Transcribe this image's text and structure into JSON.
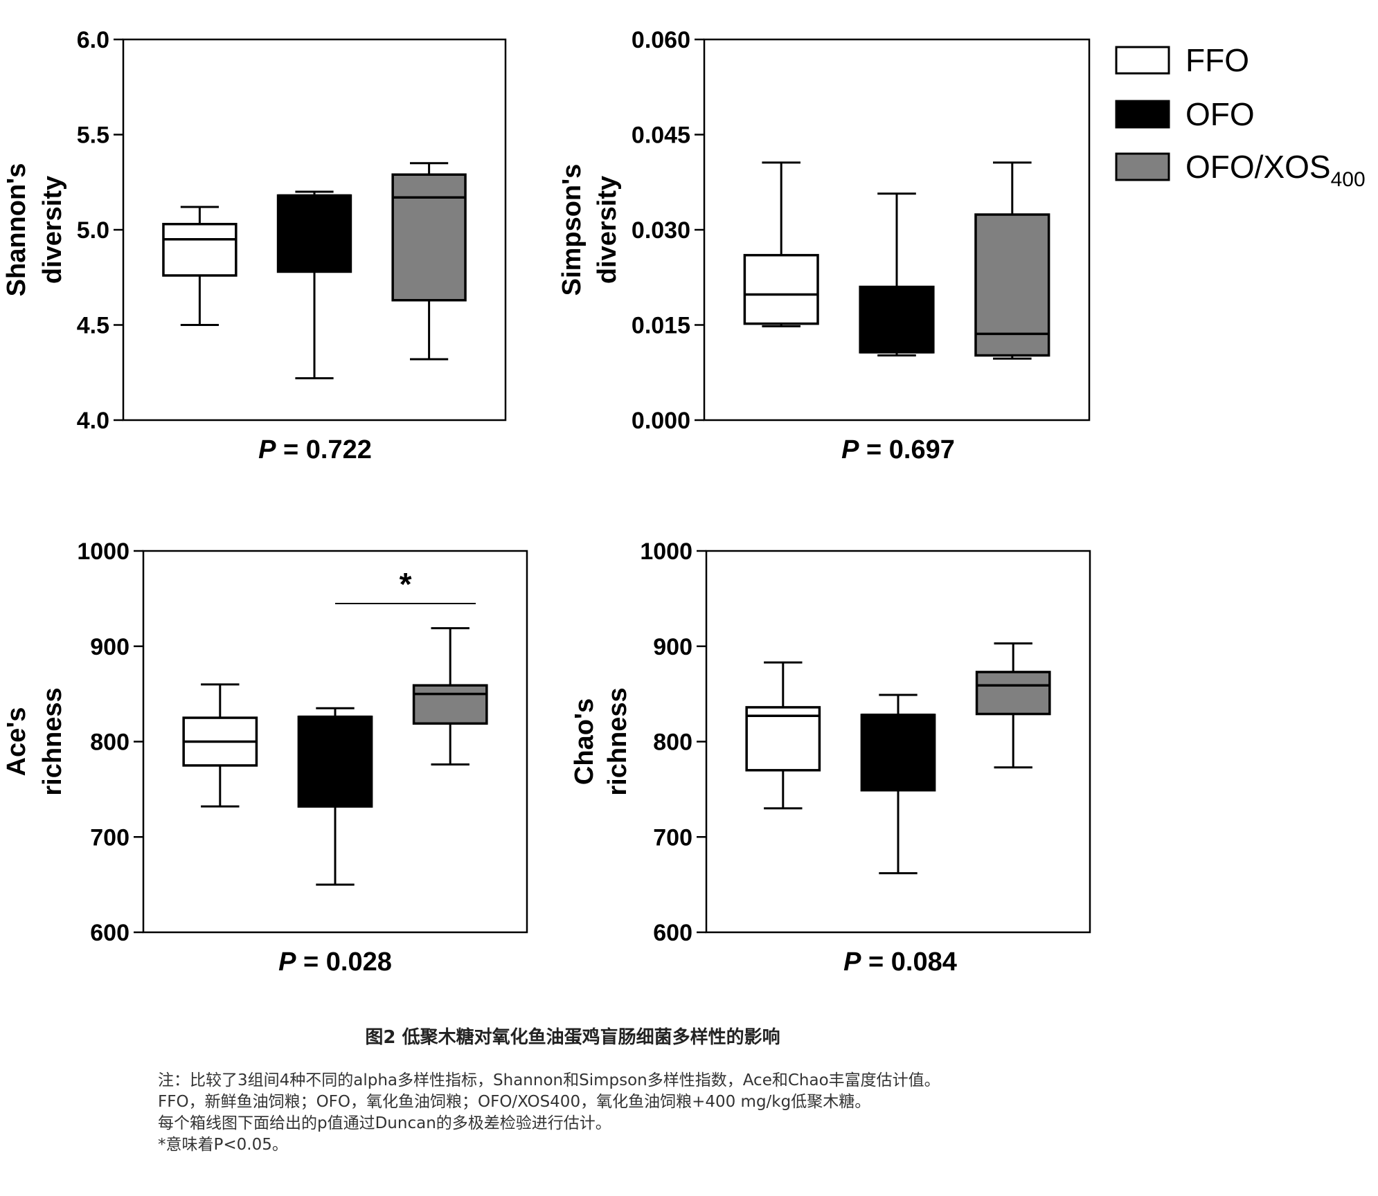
{
  "legend": [
    {
      "label": "FFO",
      "sub": "",
      "color": "#ffffff"
    },
    {
      "label": "OFO",
      "sub": "",
      "color": "#000000"
    },
    {
      "label": "OFO/XOS",
      "sub": "400",
      "color": "#808080"
    }
  ],
  "chart_data": [
    {
      "type": "box",
      "ylabel": [
        "Shannon's",
        "diversity"
      ],
      "ylim": [
        4.0,
        6.0
      ],
      "yticks": [
        "4.0",
        "4.5",
        "5.0",
        "5.5",
        "6.0"
      ],
      "p_value": "0.722",
      "boxes": [
        {
          "group": "FFO",
          "min": 4.5,
          "q1": 4.76,
          "median": 4.95,
          "q3": 5.03,
          "max": 5.12
        },
        {
          "group": "OFO",
          "min": 4.22,
          "q1": 4.78,
          "median": 5.18,
          "q3": 5.18,
          "max": 5.2
        },
        {
          "group": "OFO/XOS400",
          "min": 4.32,
          "q1": 4.63,
          "median": 5.17,
          "q3": 5.29,
          "max": 5.35
        }
      ]
    },
    {
      "type": "box",
      "ylabel": [
        "Simpson's",
        "diversity"
      ],
      "ylim": [
        0.0,
        0.06
      ],
      "yticks": [
        "0.000",
        "0.015",
        "0.030",
        "0.045",
        "0.060"
      ],
      "p_value": "0.697",
      "boxes": [
        {
          "group": "FFO",
          "min": 0.0148,
          "q1": 0.0152,
          "median": 0.0198,
          "q3": 0.026,
          "max": 0.0406
        },
        {
          "group": "OFO",
          "min": 0.0102,
          "q1": 0.0107,
          "median": 0.0107,
          "q3": 0.021,
          "max": 0.0357
        },
        {
          "group": "OFO/XOS400",
          "min": 0.0097,
          "q1": 0.0102,
          "median": 0.0136,
          "q3": 0.0324,
          "max": 0.0406
        }
      ]
    },
    {
      "type": "box",
      "ylabel": [
        "Ace's",
        "richness"
      ],
      "ylim": [
        600,
        1000
      ],
      "yticks": [
        "600",
        "700",
        "800",
        "900",
        "1000"
      ],
      "p_value": "0.028",
      "significance": {
        "from": "OFO",
        "to": "OFO/XOS400",
        "label": "*"
      },
      "boxes": [
        {
          "group": "FFO",
          "min": 732,
          "q1": 775,
          "median": 800,
          "q3": 825,
          "max": 860
        },
        {
          "group": "OFO",
          "min": 650,
          "q1": 732,
          "median": 826,
          "q3": 826,
          "max": 835
        },
        {
          "group": "OFO/XOS400",
          "min": 776,
          "q1": 819,
          "median": 850,
          "q3": 859,
          "max": 919
        }
      ]
    },
    {
      "type": "box",
      "ylabel": [
        "Chao's",
        "richness"
      ],
      "ylim": [
        600,
        1000
      ],
      "yticks": [
        "600",
        "700",
        "800",
        "900",
        "1000"
      ],
      "p_value": "0.084",
      "boxes": [
        {
          "group": "FFO",
          "min": 730,
          "q1": 770,
          "median": 827,
          "q3": 836,
          "max": 883
        },
        {
          "group": "OFO",
          "min": 662,
          "q1": 749,
          "median": 828,
          "q3": 828,
          "max": 849
        },
        {
          "group": "OFO/XOS400",
          "min": 773,
          "q1": 829,
          "median": 859,
          "q3": 873,
          "max": 903
        }
      ]
    }
  ],
  "caption": {
    "title": "图2 低聚木糖对氧化鱼油蛋鸡盲肠细菌多样性的影响",
    "notes": [
      "注：比较了3组间4种不同的alpha多样性指标，Shannon和Simpson多样性指数，Ace和Chao丰富度估计值。",
      "FFO，新鲜鱼油饲粮；OFO，氧化鱼油饲粮；OFO/XOS400，氧化鱼油饲粮+400 mg/kg低聚木糖。",
      "每个箱线图下面给出的p值通过Duncan的多极差检验进行估计。",
      "*意味着P<0.05。"
    ]
  }
}
